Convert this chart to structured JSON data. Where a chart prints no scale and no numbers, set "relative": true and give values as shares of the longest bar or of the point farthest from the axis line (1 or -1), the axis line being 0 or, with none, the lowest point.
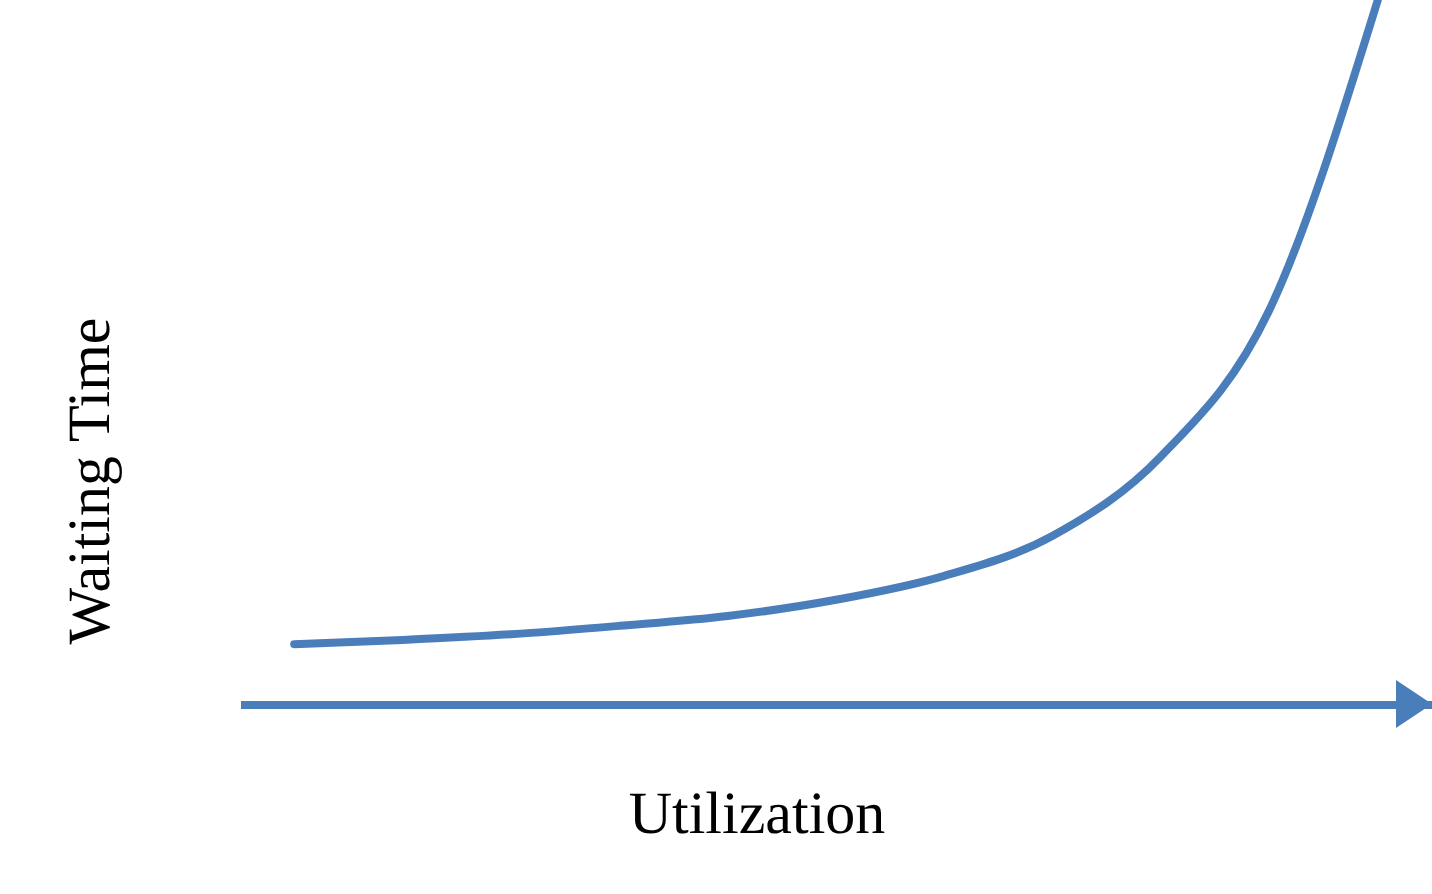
{
  "chart_data": {
    "type": "line",
    "relative": true,
    "xlabel": "Utilization",
    "ylabel": "Waiting Time",
    "categories": [
      null,
      null,
      null,
      null,
      null,
      null,
      null,
      null,
      null,
      null,
      null
    ],
    "series": [
      {
        "color": "#4a7ebb",
        "values": [
          0.085,
          0.091,
          0.099,
          0.111,
          0.125,
          0.148,
          0.182,
          0.239,
          0.352,
          0.56,
          1
        ]
      }
    ],
    "grid": false,
    "marker": "none",
    "line_style": "solid"
  }
}
